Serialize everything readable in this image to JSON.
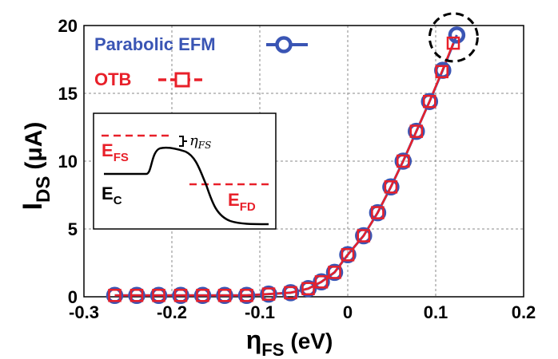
{
  "colors": {
    "parabolic": "#3a55b4",
    "otb": "#e8202a",
    "grid": "#8a8a8a",
    "axis": "#000000"
  },
  "chart_data": {
    "type": "scatter",
    "xlabel": {
      "symbol": "η",
      "sub": "FS",
      "unit": "(eV)"
    },
    "ylabel": {
      "main": "I",
      "sub": "DS",
      "unit": "(μA)"
    },
    "xlim": [
      -0.3,
      0.2
    ],
    "ylim": [
      0,
      20
    ],
    "xticks": [
      -0.3,
      -0.2,
      -0.1,
      0,
      0.1,
      0.2
    ],
    "xtick_labels": [
      "-0.3",
      "-0.2",
      "-0.1",
      "0",
      "0.1",
      "0.2"
    ],
    "yticks": [
      0,
      5,
      10,
      15,
      20
    ],
    "ytick_labels": [
      "0",
      "5",
      "10",
      "15",
      "20"
    ],
    "grid": true,
    "legend_position": "top-left",
    "series": [
      {
        "name": "Parabolic EFM",
        "marker": "circle",
        "x": [
          -0.265,
          -0.24,
          -0.215,
          -0.19,
          -0.165,
          -0.14,
          -0.115,
          -0.09,
          -0.065,
          -0.045,
          -0.03,
          -0.015,
          0.0,
          0.018,
          0.034,
          0.049,
          0.063,
          0.078,
          0.093,
          0.108,
          0.124
        ],
        "y": [
          0.1,
          0.1,
          0.1,
          0.1,
          0.1,
          0.1,
          0.1,
          0.2,
          0.3,
          0.6,
          1.1,
          1.8,
          3.1,
          4.5,
          6.2,
          8.1,
          10.0,
          12.2,
          14.4,
          16.7,
          19.3
        ]
      },
      {
        "name": "OTB",
        "marker": "square",
        "x": [
          -0.265,
          -0.24,
          -0.215,
          -0.19,
          -0.165,
          -0.14,
          -0.115,
          -0.09,
          -0.065,
          -0.045,
          -0.03,
          -0.015,
          0.0,
          0.018,
          0.034,
          0.049,
          0.063,
          0.078,
          0.093,
          0.107,
          0.12
        ],
        "y": [
          0.1,
          0.1,
          0.1,
          0.1,
          0.1,
          0.1,
          0.1,
          0.2,
          0.3,
          0.6,
          1.1,
          1.8,
          3.1,
          4.5,
          6.2,
          8.1,
          10.0,
          12.2,
          14.4,
          16.6,
          18.7
        ]
      }
    ],
    "annotation": "dashed circle around last point",
    "inset": {
      "labels": {
        "efs": {
          "main": "E",
          "sub": "FS"
        },
        "ec": {
          "main": "E",
          "sub": "C"
        },
        "efd": {
          "main": "E",
          "sub": "FD"
        },
        "eta": {
          "main": "η",
          "sub": "FS"
        }
      }
    }
  }
}
